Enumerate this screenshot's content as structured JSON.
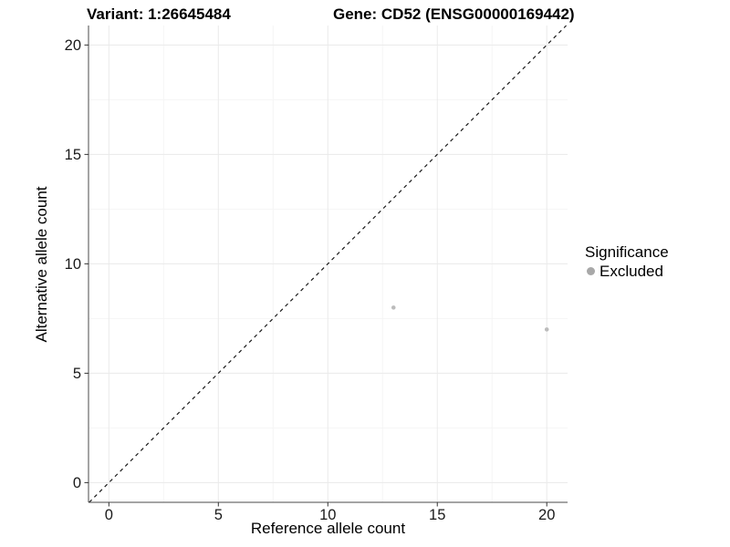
{
  "titles": {
    "left": "Variant: 1:26645484",
    "right": "Gene: CD52 (ENSG00000169442)"
  },
  "chart_data": {
    "type": "scatter",
    "title": "Variant: 1:26645484    Gene: CD52 (ENSG00000169442)",
    "xlabel": "Reference allele count",
    "ylabel": "Alternative allele count",
    "xlim": [
      -0.93,
      20.95
    ],
    "ylim": [
      -0.9,
      20.89
    ],
    "x_ticks": [
      0,
      5,
      10,
      15,
      20
    ],
    "y_ticks": [
      0,
      5,
      10,
      15,
      20
    ],
    "x_minor": [
      2.5,
      7.5,
      12.5,
      17.5
    ],
    "y_minor": [
      2.5,
      7.5,
      12.5,
      17.5
    ],
    "grid": {
      "major_color": "#eaeaea",
      "minor_color": "#f5f5f5"
    },
    "axis_color": "#4a4a4a",
    "tick_color": "#333333",
    "tick_label_color": "#1a1a1a",
    "series": [
      {
        "name": "Excluded",
        "color": "#bcbcbc",
        "points": [
          {
            "x": 13,
            "y": 8
          },
          {
            "x": 20,
            "y": 7
          }
        ]
      }
    ],
    "reference_line": {
      "type": "identity",
      "slope": 1,
      "intercept": 0,
      "style": "dashed",
      "color": "#1a1a1a"
    },
    "legend_position": "right"
  },
  "legend": {
    "title": "Significance",
    "items": [
      {
        "label": "Excluded",
        "marker_color": "#a8a8a8"
      }
    ]
  }
}
